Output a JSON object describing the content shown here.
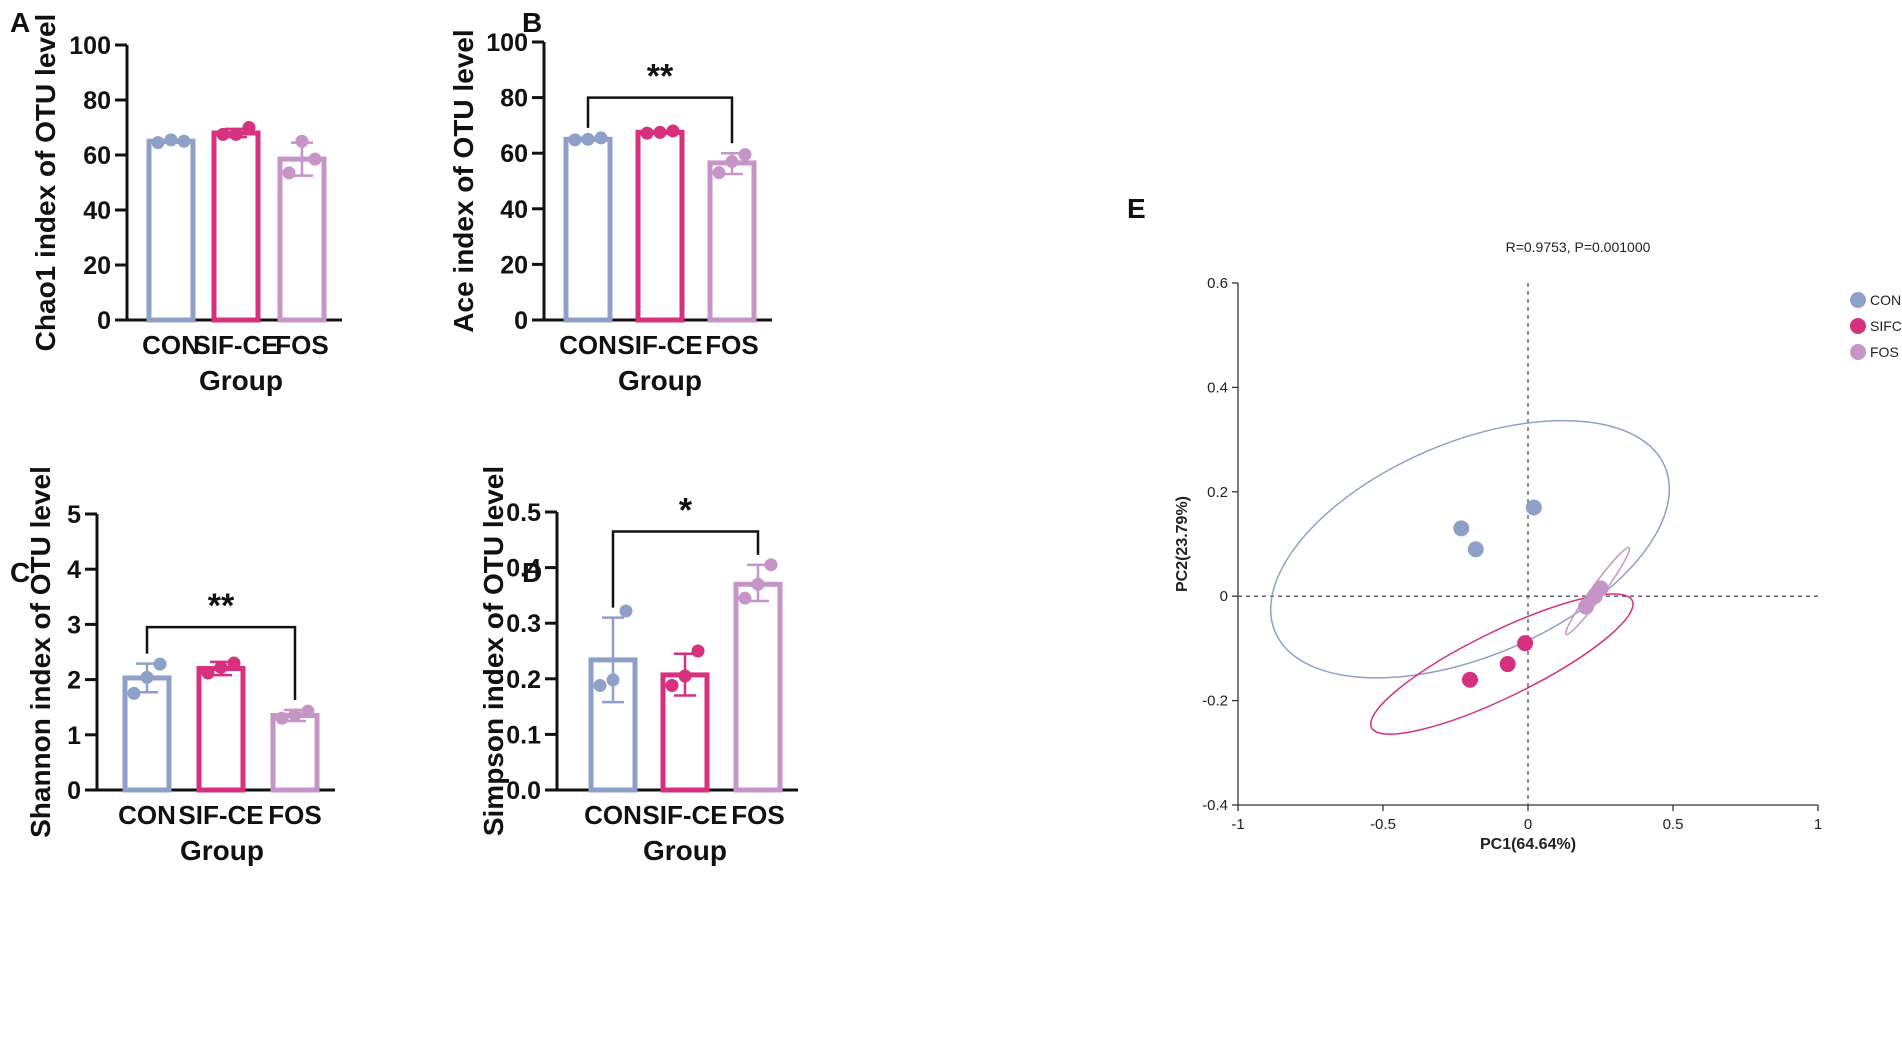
{
  "chart_data": [
    {
      "panel": "A",
      "type": "bar",
      "categories": [
        "CON",
        "SIF-CE",
        "FOS"
      ],
      "values": [
        65,
        68,
        58.5
      ],
      "errors": [
        [
          64.5,
          65.5
        ],
        [
          66.5,
          69.5
        ],
        [
          52.5,
          64.5
        ]
      ],
      "points": [
        [
          64.5,
          65.5,
          65
        ],
        [
          67.5,
          67.5,
          70
        ],
        [
          53.5,
          65,
          58.5
        ]
      ],
      "colors": [
        "#8fa0c8",
        "#d6307e",
        "#c495c6"
      ],
      "ylabel": "Chao1 index of OTU level",
      "xlabel": "Group",
      "ylim": [
        0,
        100
      ],
      "yticks": [
        "0",
        "20",
        "40",
        "60",
        "80",
        "100"
      ],
      "significance": null
    },
    {
      "panel": "B",
      "type": "bar",
      "categories": [
        "CON",
        "SIF-CE",
        "FOS"
      ],
      "values": [
        65,
        67.5,
        56.5
      ],
      "errors": [
        [
          64.5,
          65.5
        ],
        [
          67,
          68
        ],
        [
          52.5,
          60
        ]
      ],
      "points": [
        [
          64.8,
          65,
          65.5
        ],
        [
          67.2,
          67.5,
          68
        ],
        [
          53,
          57,
          59.5
        ]
      ],
      "colors": [
        "#8fa0c8",
        "#d6307e",
        "#c495c6"
      ],
      "ylabel": "Ace index of OTU level",
      "xlabel": "Group",
      "ylim": [
        0,
        100
      ],
      "yticks": [
        "0",
        "20",
        "40",
        "60",
        "80",
        "100"
      ],
      "significance": {
        "from": 0,
        "to": 2,
        "label": "**",
        "y": 80
      }
    },
    {
      "panel": "C",
      "type": "bar",
      "categories": [
        "CON",
        "SIF-CE",
        "FOS"
      ],
      "values": [
        2.03,
        2.2,
        1.35
      ],
      "errors": [
        [
          1.77,
          2.29
        ],
        [
          2.08,
          2.32
        ],
        [
          1.25,
          1.45
        ]
      ],
      "points": [
        [
          1.75,
          2.04,
          2.28
        ],
        [
          2.12,
          2.22,
          2.3
        ],
        [
          1.3,
          1.36,
          1.43
        ]
      ],
      "colors": [
        "#8fa0c8",
        "#d6307e",
        "#c495c6"
      ],
      "ylabel": "Shannon index of OTU level",
      "xlabel": "Group",
      "ylim": [
        0,
        5
      ],
      "yticks": [
        "0",
        "1",
        "2",
        "3",
        "4",
        "5"
      ],
      "significance": {
        "from": 0,
        "to": 2,
        "label": "**",
        "y": 2.95
      }
    },
    {
      "panel": "D",
      "type": "bar",
      "categories": [
        "CON",
        "SIF-CE",
        "FOS"
      ],
      "values": [
        0.234,
        0.207,
        0.37
      ],
      "errors": [
        [
          0.158,
          0.31
        ],
        [
          0.17,
          0.245
        ],
        [
          0.34,
          0.405
        ]
      ],
      "points": [
        [
          0.188,
          0.198,
          0.322
        ],
        [
          0.188,
          0.205,
          0.25
        ],
        [
          0.345,
          0.37,
          0.405
        ]
      ],
      "colors": [
        "#8fa0c8",
        "#d6307e",
        "#c495c6"
      ],
      "ylabel": "Simpson index of OTU level",
      "xlabel": "Group",
      "ylim": [
        0,
        0.5
      ],
      "yticks": [
        "0.0",
        "0.1",
        "0.2",
        "0.3",
        "0.4",
        "0.5"
      ],
      "significance": {
        "from": 0,
        "to": 2,
        "label": "*",
        "y": 0.465
      }
    },
    {
      "panel": "E",
      "type": "scatter",
      "title": "R=0.9753, P=0.001000",
      "xlabel": "PC1(64.64%)",
      "ylabel": "PC2(23.79%)",
      "xlim": [
        -1,
        1
      ],
      "ylim": [
        -0.4,
        0.6
      ],
      "xticks": [
        "-1",
        "-0.5",
        "0",
        "0.5",
        "1"
      ],
      "yticks": [
        "-0.4",
        "-0.2",
        "0",
        "0.2",
        "0.4",
        "0.6"
      ],
      "series": [
        {
          "name": "CON",
          "color": "#8fa0c8",
          "points": [
            [
              -0.23,
              0.13
            ],
            [
              -0.18,
              0.09
            ],
            [
              0.02,
              0.17
            ]
          ],
          "ellipse": {
            "cx": -0.2,
            "cy": 0.09,
            "rx": 0.73,
            "ry": 0.205,
            "angle": 23
          }
        },
        {
          "name": "SIFCE",
          "color": "#d6307e",
          "points": [
            [
              -0.2,
              -0.16
            ],
            [
              -0.07,
              -0.13
            ],
            [
              -0.01,
              -0.09
            ]
          ],
          "ellipse": {
            "cx": -0.09,
            "cy": -0.13,
            "rx": 0.5,
            "ry": 0.063,
            "angle": 26
          }
        },
        {
          "name": "FOS",
          "color": "#c495c6",
          "points": [
            [
              0.2,
              -0.02
            ],
            [
              0.23,
              0.0
            ],
            [
              0.25,
              0.015
            ]
          ],
          "ellipse": {
            "cx": 0.24,
            "cy": 0.01,
            "rx": 0.185,
            "ry": 0.012,
            "angle": 54
          }
        }
      ]
    }
  ],
  "panel_labels": [
    "A",
    "B",
    "C",
    "D",
    "E"
  ]
}
